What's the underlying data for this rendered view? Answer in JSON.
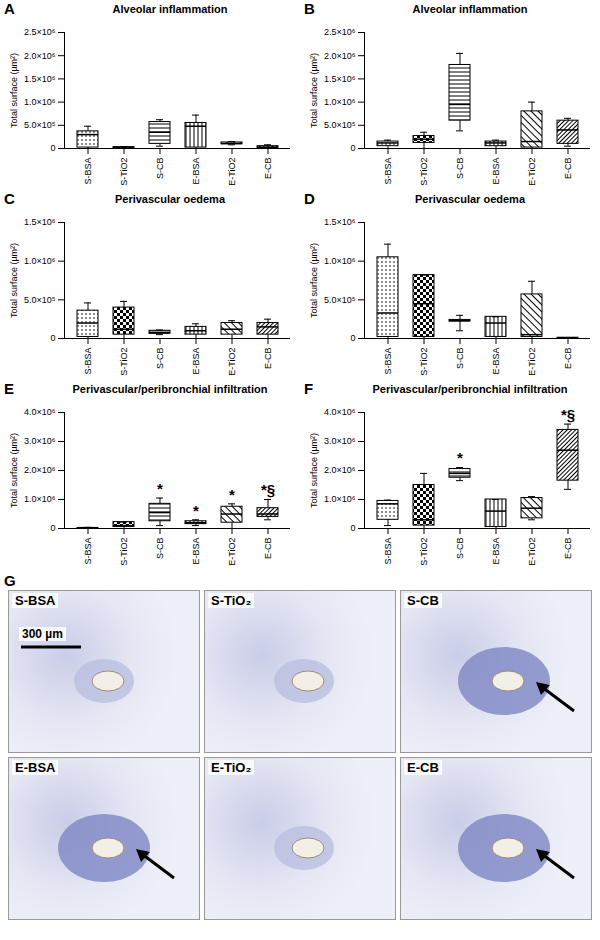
{
  "chart_data": [
    {
      "type": "box",
      "panel_label": "A",
      "title": "Alveolar inflammation",
      "y_label": "Total surface (µm²)",
      "categories": [
        "S-BSA",
        "S-TiO2",
        "S-CB",
        "E-BSA",
        "E-TiO2",
        "E-CB"
      ],
      "min": [
        0,
        0,
        50000,
        0,
        80000,
        0
      ],
      "q1": [
        20000,
        0,
        100000,
        20000,
        90000,
        10000
      ],
      "median": [
        300000,
        10000,
        350000,
        480000,
        110000,
        30000
      ],
      "q3": [
        370000,
        30000,
        570000,
        550000,
        130000,
        50000
      ],
      "max": [
        480000,
        40000,
        620000,
        720000,
        150000,
        80000
      ],
      "annotations": [
        null,
        null,
        null,
        null,
        null,
        null
      ],
      "ylim": [
        0,
        2500000
      ],
      "yticks": [
        0,
        {
          "value": 500000,
          "label": "5.0×10⁵"
        },
        {
          "value": 1000000,
          "label": "1.0×10⁶"
        },
        {
          "value": 1500000,
          "label": "1.5×10⁶"
        },
        {
          "value": 2000000,
          "label": "2.0×10⁶"
        },
        {
          "value": 2500000,
          "label": "2.5×10⁶"
        }
      ]
    },
    {
      "type": "box",
      "panel_label": "B",
      "title": "Alveolar inflammation",
      "y_label": "Total surface (µm²)",
      "categories": [
        "S-BSA",
        "S-TiO2",
        "S-CB",
        "E-BSA",
        "E-TiO2",
        "E-CB"
      ],
      "min": [
        0,
        0,
        380000,
        0,
        0,
        50000
      ],
      "q1": [
        50000,
        120000,
        600000,
        50000,
        20000,
        100000
      ],
      "median": [
        120000,
        200000,
        950000,
        120000,
        150000,
        400000
      ],
      "q3": [
        150000,
        270000,
        1800000,
        150000,
        800000,
        600000
      ],
      "max": [
        180000,
        350000,
        2050000,
        180000,
        1000000,
        650000
      ],
      "annotations": [
        null,
        null,
        null,
        null,
        null,
        null
      ],
      "ylim": [
        0,
        2500000
      ],
      "yticks": [
        0,
        {
          "value": 500000,
          "label": "5.0×10⁵"
        },
        {
          "value": 1000000,
          "label": "1.0×10⁶"
        },
        {
          "value": 1500000,
          "label": "1.5×10⁶"
        },
        {
          "value": 2000000,
          "label": "2.0×10⁶"
        },
        {
          "value": 2500000,
          "label": "2.5×10⁶"
        }
      ]
    },
    {
      "type": "box",
      "panel_label": "C",
      "title": "Perivascular oedema",
      "y_label": "Total surface (µm²)",
      "categories": [
        "S-BSA",
        "S-TiO2",
        "S-CB",
        "E-BSA",
        "E-TiO2",
        "E-CB"
      ],
      "min": [
        0,
        0,
        50000,
        0,
        0,
        0
      ],
      "q1": [
        20000,
        50000,
        60000,
        50000,
        50000,
        50000
      ],
      "median": [
        200000,
        120000,
        80000,
        100000,
        120000,
        150000
      ],
      "q3": [
        360000,
        400000,
        100000,
        150000,
        200000,
        200000
      ],
      "max": [
        460000,
        480000,
        110000,
        190000,
        230000,
        250000
      ],
      "annotations": [
        null,
        null,
        null,
        null,
        null,
        null
      ],
      "ylim": [
        0,
        1500000
      ],
      "yticks": [
        0,
        {
          "value": 500000,
          "label": "5.0×10⁵"
        },
        {
          "value": 1000000,
          "label": "1.0×10⁶"
        },
        {
          "value": 1500000,
          "label": "1.5×10⁶"
        }
      ]
    },
    {
      "type": "box",
      "panel_label": "D",
      "title": "Perivascular oedema",
      "y_label": "Total surface (µm²)",
      "categories": [
        "S-BSA",
        "S-TiO2",
        "S-CB",
        "E-BSA",
        "E-TiO2",
        "E-CB"
      ],
      "min": [
        0,
        0,
        100000,
        0,
        0,
        0
      ],
      "q1": [
        20000,
        20000,
        220000,
        20000,
        20000,
        0
      ],
      "median": [
        330000,
        450000,
        230000,
        200000,
        50000,
        5000
      ],
      "q3": [
        1050000,
        820000,
        240000,
        280000,
        570000,
        10000
      ],
      "max": [
        1220000,
        820000,
        300000,
        280000,
        740000,
        10000
      ],
      "annotations": [
        null,
        null,
        null,
        null,
        null,
        null
      ],
      "ylim": [
        0,
        1500000
      ],
      "yticks": [
        0,
        {
          "value": 500000,
          "label": "5.0×10⁵"
        },
        {
          "value": 1000000,
          "label": "1.0×10⁶"
        },
        {
          "value": 1500000,
          "label": "1.5×10⁶"
        }
      ]
    },
    {
      "type": "box",
      "panel_label": "E",
      "title": "Perivascular/peribronchial infiltration",
      "y_label": "Total surface (µm²)",
      "categories": [
        "S-BSA",
        "S-TiO2",
        "S-CB",
        "E-BSA",
        "E-TiO2",
        "E-CB"
      ],
      "min": [
        0,
        0,
        100000,
        100000,
        0,
        300000
      ],
      "q1": [
        5000,
        50000,
        250000,
        150000,
        200000,
        400000
      ],
      "median": [
        10000,
        100000,
        550000,
        200000,
        500000,
        500000
      ],
      "q3": [
        20000,
        220000,
        850000,
        250000,
        750000,
        700000
      ],
      "max": [
        40000,
        220000,
        1050000,
        300000,
        850000,
        1000000
      ],
      "annotations": [
        null,
        null,
        "*",
        "*",
        "*",
        "*§"
      ],
      "ylim": [
        0,
        4000000
      ],
      "yticks": [
        0,
        {
          "value": 1000000,
          "label": "1.0×10⁶"
        },
        {
          "value": 2000000,
          "label": "2.0×10⁶"
        },
        {
          "value": 3000000,
          "label": "3.0×10⁶"
        },
        {
          "value": 4000000,
          "label": "4.0×10⁶"
        }
      ]
    },
    {
      "type": "box",
      "panel_label": "F",
      "title": "Perivascular/peribronchial infiltration",
      "y_label": "Total surface (µm²)",
      "categories": [
        "S-BSA",
        "S-TiO2",
        "S-CB",
        "E-BSA",
        "E-TiO2",
        "E-CB"
      ],
      "min": [
        100000,
        0,
        1650000,
        0,
        300000,
        1350000
      ],
      "q1": [
        300000,
        100000,
        1750000,
        50000,
        350000,
        1650000
      ],
      "median": [
        850000,
        300000,
        1900000,
        600000,
        700000,
        2700000
      ],
      "q3": [
        950000,
        1500000,
        2050000,
        1000000,
        1050000,
        3400000
      ],
      "max": [
        980000,
        1900000,
        2100000,
        1000000,
        1100000,
        3600000
      ],
      "annotations": [
        null,
        null,
        "*",
        null,
        null,
        "*§"
      ],
      "ylim": [
        0,
        4000000
      ],
      "yticks": [
        0,
        {
          "value": 1000000,
          "label": "1.0×10⁶"
        },
        {
          "value": 2000000,
          "label": "2.0×10⁶"
        },
        {
          "value": 3000000,
          "label": "3.0×10⁶"
        },
        {
          "value": 4000000,
          "label": "4.0×10⁶"
        }
      ]
    }
  ],
  "image_panel": {
    "panel_label": "G",
    "scale_bar": "300 µm",
    "images": [
      {
        "label": "S-BSA",
        "arrow": false
      },
      {
        "label": "S-TiO₂",
        "arrow": false
      },
      {
        "label": "S-CB",
        "arrow": true
      },
      {
        "label": "E-BSA",
        "arrow": true
      },
      {
        "label": "E-TiO₂",
        "arrow": false
      },
      {
        "label": "E-CB",
        "arrow": true
      }
    ]
  }
}
